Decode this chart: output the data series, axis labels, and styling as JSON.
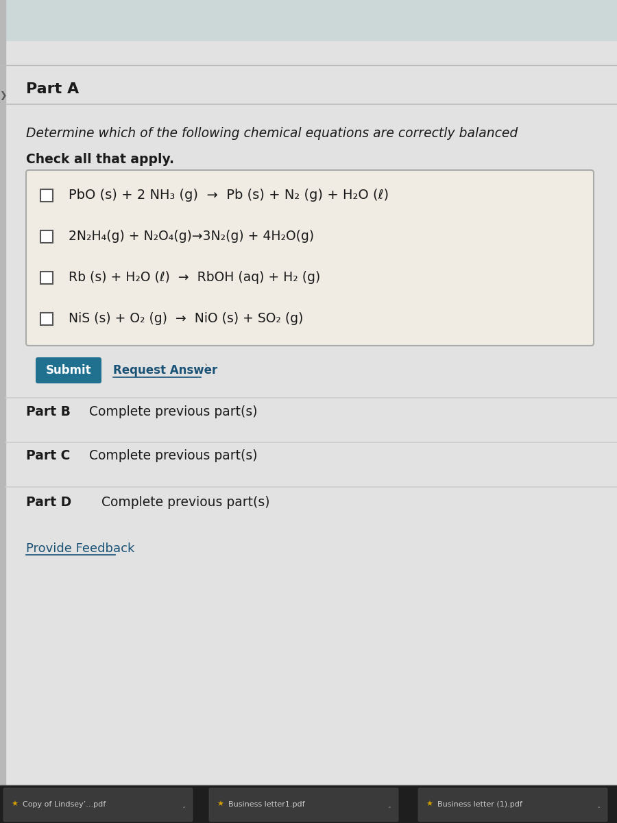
{
  "page_bg": "#e0e0e0",
  "top_strip_color": "#c8d8d8",
  "content_bg": "#e8e8e8",
  "part_a_label": "Part A",
  "instruction": "Determine which of the following chemical equations are correctly balanced",
  "check_label": "Check all that apply.",
  "equations": [
    "PbO (s) + 2 NH₃ (g)  →  Pb (s) + N₂ (g) + H₂O (ℓ)",
    "2N₂H₄(g) + N₂O₄(g)→3N₂(g) + 4H₂O(g)",
    "Rb (s) + H₂O (ℓ)  →  RbOH (aq) + H₂ (g)",
    "NiS (s) + O₂ (g)  →  NiO (s) + SO₂ (g)"
  ],
  "submit_btn_color": "#2980a0",
  "submit_btn_text": "Submit",
  "request_answer_text": "Request Answer",
  "part_b_label": "Part B",
  "part_c_label": "Part C",
  "part_d_label": "Part D",
  "complete_text": "Complete previous part(s)",
  "feedback_text": "Provide Feedback",
  "bottom_bar_color": "#1a1a1a",
  "bottom_files": [
    "Copy of Lindsey’...pdf",
    "Business letter1.pdf",
    "Business letter (1).pdf"
  ],
  "box_bg": "#f0ece4",
  "box_border": "#aaaaaa",
  "text_color": "#1a1a1a",
  "link_color": "#1a5276",
  "divider_color": "#cccccc",
  "submit_color": "#207090"
}
